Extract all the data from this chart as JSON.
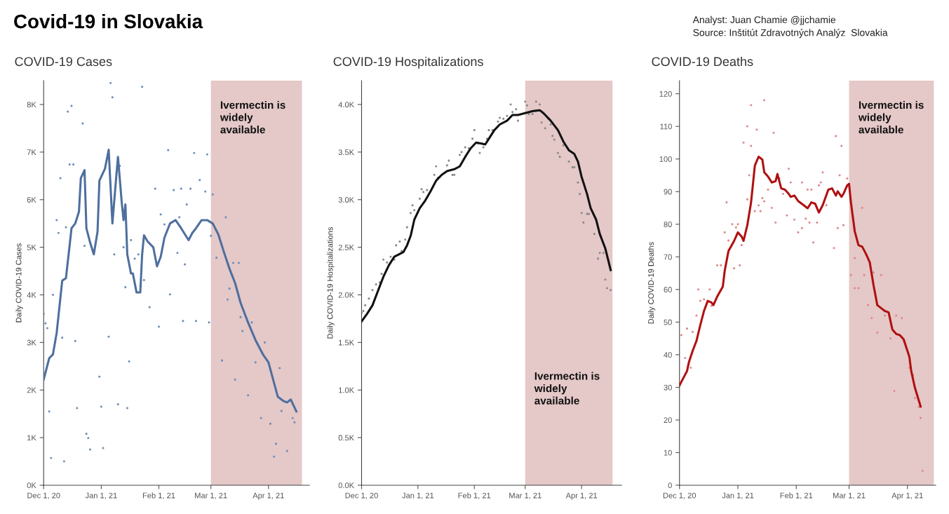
{
  "chart_data": [
    {
      "type": "other",
      "title": "Covid-19 in Slovakia",
      "annotations": [
        "Analyst: Juan Chamie @jjchamie",
        "Source: Inštitút Zdravotných Analýz  Slovakia"
      ]
    },
    {
      "type": "line",
      "title": "COVID-19 Cases",
      "ylabel": "Daily COVID-19 Cases",
      "grid": false,
      "legend": false,
      "xlim": [
        "2020-12-01",
        "2021-04-23"
      ],
      "xticks": [
        {
          "value": "2020-12-01",
          "label": "Dec 1, 20"
        },
        {
          "value": "2021-01-01",
          "label": "Jan 1, 21"
        },
        {
          "value": "2021-02-01",
          "label": "Feb 1, 21"
        },
        {
          "value": "2021-03-01",
          "label": "Mar 1, 21"
        },
        {
          "value": "2021-04-01",
          "label": "Apr 1, 21"
        }
      ],
      "ylim": [
        0,
        8500
      ],
      "yticks": [
        {
          "value": 0,
          "label": "0K"
        },
        {
          "value": 1000,
          "label": "1K"
        },
        {
          "value": 2000,
          "label": "2K"
        },
        {
          "value": 3000,
          "label": "3K"
        },
        {
          "value": 4000,
          "label": "4K"
        },
        {
          "value": 5000,
          "label": "5K"
        },
        {
          "value": 6000,
          "label": "6K"
        },
        {
          "value": 7000,
          "label": "7K"
        },
        {
          "value": 8000,
          "label": "8K"
        }
      ],
      "bands": [
        {
          "axis": "x",
          "from": "2021-03-01",
          "to": "2021-04-19",
          "color": "#e5c8c8",
          "label": "Ivermectin is\nwidely\navailable"
        }
      ],
      "series": [
        {
          "type": "scatter",
          "marker": "circle",
          "color": "#6f8fb5",
          "x": [
            "2020-12-01",
            "2020-12-02",
            "2020-12-03",
            "2020-12-04",
            "2020-12-05",
            "2020-12-06",
            "2020-12-08",
            "2020-12-09",
            "2020-12-10",
            "2020-12-11",
            "2020-12-12",
            "2020-12-13",
            "2020-12-14",
            "2020-12-15",
            "2020-12-16",
            "2020-12-17",
            "2020-12-18",
            "2020-12-19",
            "2020-12-22",
            "2020-12-23",
            "2020-12-24",
            "2020-12-25",
            "2020-12-26",
            "2020-12-31",
            "2021-01-01",
            "2021-01-02",
            "2021-01-05",
            "2021-01-06",
            "2021-01-07",
            "2021-01-08",
            "2021-01-10",
            "2021-01-11",
            "2021-01-13",
            "2021-01-14",
            "2021-01-15",
            "2021-01-16",
            "2021-01-17",
            "2021-01-19",
            "2021-01-21",
            "2021-01-23",
            "2021-01-24",
            "2021-01-27",
            "2021-01-30",
            "2021-02-01",
            "2021-02-02",
            "2021-02-04",
            "2021-02-06",
            "2021-02-07",
            "2021-02-09",
            "2021-02-11",
            "2021-02-12",
            "2021-02-13",
            "2021-02-14",
            "2021-02-15",
            "2021-02-16",
            "2021-02-18",
            "2021-02-20",
            "2021-02-21",
            "2021-02-23",
            "2021-02-26",
            "2021-02-27",
            "2021-02-28",
            "2021-03-01",
            "2021-03-02",
            "2021-03-04",
            "2021-03-07",
            "2021-03-09",
            "2021-03-10",
            "2021-03-11",
            "2021-03-13",
            "2021-03-14",
            "2021-03-16",
            "2021-03-17",
            "2021-03-18",
            "2021-03-21",
            "2021-03-23",
            "2021-03-25",
            "2021-03-28",
            "2021-03-30",
            "2021-04-02",
            "2021-04-04",
            "2021-04-05",
            "2021-04-07",
            "2021-04-08",
            "2021-04-11",
            "2021-04-14",
            "2021-04-15"
          ],
          "values": [
            3600,
            3400,
            3300,
            1550,
            570,
            4000,
            5570,
            5300,
            6450,
            3100,
            500,
            5420,
            7850,
            6740,
            7970,
            6740,
            3030,
            1620,
            7600,
            5030,
            1080,
            990,
            750,
            2280,
            1650,
            780,
            3120,
            8450,
            8150,
            4850,
            1700,
            6710,
            5000,
            4160,
            1620,
            2600,
            5150,
            4760,
            4850,
            8370,
            4310,
            3740,
            6230,
            3330,
            5690,
            5480,
            7040,
            4010,
            6200,
            4880,
            5630,
            6230,
            3450,
            4640,
            5900,
            6230,
            6980,
            3450,
            6410,
            6170,
            6950,
            3420,
            5240,
            6110,
            4780,
            2620,
            5630,
            3900,
            4130,
            4670,
            2220,
            4670,
            3530,
            3240,
            1890,
            3420,
            2580,
            1410,
            3000,
            1290,
            600,
            870,
            2460,
            1560,
            720,
            1410,
            1320
          ]
        },
        {
          "type": "line",
          "color": "#4e6f9e",
          "x": [
            "2020-12-01",
            "2020-12-04",
            "2020-12-06",
            "2020-12-08",
            "2020-12-11",
            "2020-12-13",
            "2020-12-16",
            "2020-12-18",
            "2020-12-20",
            "2020-12-21",
            "2020-12-23",
            "2020-12-24",
            "2020-12-26",
            "2020-12-28",
            "2020-12-30",
            "2020-12-31",
            "2021-01-03",
            "2021-01-05",
            "2021-01-07",
            "2021-01-09",
            "2021-01-10",
            "2021-01-12",
            "2021-01-13",
            "2021-01-14",
            "2021-01-15",
            "2021-01-17",
            "2021-01-18",
            "2021-01-20",
            "2021-01-22",
            "2021-01-23",
            "2021-01-24",
            "2021-01-26",
            "2021-01-29",
            "2021-01-31",
            "2021-02-02",
            "2021-02-04",
            "2021-02-07",
            "2021-02-10",
            "2021-02-13",
            "2021-02-17",
            "2021-02-19",
            "2021-02-21",
            "2021-02-24",
            "2021-02-27",
            "2021-03-02",
            "2021-03-05",
            "2021-03-08",
            "2021-03-11",
            "2021-03-14",
            "2021-03-17",
            "2021-03-21",
            "2021-03-25",
            "2021-03-29",
            "2021-04-01",
            "2021-04-04",
            "2021-04-06",
            "2021-04-09",
            "2021-04-11",
            "2021-04-13",
            "2021-04-16"
          ],
          "values": [
            2220,
            2670,
            2750,
            3200,
            4300,
            4350,
            5400,
            5500,
            5750,
            6450,
            6620,
            5400,
            5100,
            4850,
            5330,
            6400,
            6650,
            7050,
            5500,
            6450,
            6900,
            5950,
            5570,
            5900,
            4850,
            4450,
            4450,
            4050,
            4050,
            4850,
            5250,
            5120,
            5000,
            4600,
            4800,
            5200,
            5500,
            5570,
            5400,
            5150,
            5300,
            5400,
            5570,
            5570,
            5500,
            5270,
            4900,
            4550,
            4250,
            3830,
            3420,
            3050,
            2750,
            2580,
            2150,
            1860,
            1770,
            1740,
            1800,
            1550
          ]
        }
      ]
    },
    {
      "type": "line",
      "title": "COVID-19 Hospitalizations",
      "ylabel": "Daily COVID-19 Hospitalizations",
      "grid": false,
      "legend": false,
      "xlim": [
        "2020-12-01",
        "2021-04-23"
      ],
      "xticks": [
        {
          "value": "2020-12-01",
          "label": "Dec 1, 20"
        },
        {
          "value": "2021-01-01",
          "label": "Jan 1, 21"
        },
        {
          "value": "2021-02-01",
          "label": "Feb 1, 21"
        },
        {
          "value": "2021-03-01",
          "label": "Mar 1, 21"
        },
        {
          "value": "2021-04-01",
          "label": "Apr 1, 21"
        }
      ],
      "ylim": [
        0,
        4250
      ],
      "yticks": [
        {
          "value": 0,
          "label": "0.0K"
        },
        {
          "value": 500,
          "label": "0.5K"
        },
        {
          "value": 1000,
          "label": "1.0K"
        },
        {
          "value": 1500,
          "label": "1.5K"
        },
        {
          "value": 2000,
          "label": "2.0K"
        },
        {
          "value": 2500,
          "label": "2.5K"
        },
        {
          "value": 3000,
          "label": "3.0K"
        },
        {
          "value": 3500,
          "label": "3.5K"
        },
        {
          "value": 4000,
          "label": "4.0K"
        }
      ],
      "bands": [
        {
          "axis": "x",
          "from": "2021-03-01",
          "to": "2021-04-18",
          "color": "#e5c8c8",
          "label": "Ivermectin is\nwidely\navailable"
        }
      ],
      "series": [
        {
          "type": "scatter",
          "marker": "circle",
          "color": "#8a8a8a",
          "x": [
            "2020-12-01",
            "2020-12-02",
            "2020-12-03",
            "2020-12-05",
            "2020-12-07",
            "2020-12-09",
            "2020-12-11",
            "2020-12-12",
            "2020-12-13",
            "2020-12-15",
            "2020-12-17",
            "2020-12-19",
            "2020-12-20",
            "2020-12-22",
            "2020-12-23",
            "2020-12-25",
            "2020-12-26",
            "2020-12-28",
            "2020-12-29",
            "2020-12-30",
            "2021-01-02",
            "2021-01-03",
            "2021-01-04",
            "2021-01-06",
            "2021-01-10",
            "2021-01-11",
            "2021-01-12",
            "2021-01-17",
            "2021-01-18",
            "2021-01-20",
            "2021-01-21",
            "2021-01-24",
            "2021-01-25",
            "2021-01-27",
            "2021-01-29",
            "2021-01-31",
            "2021-02-01",
            "2021-02-03",
            "2021-02-04",
            "2021-02-06",
            "2021-02-08",
            "2021-02-09",
            "2021-02-11",
            "2021-02-14",
            "2021-02-15",
            "2021-02-17",
            "2021-02-19",
            "2021-02-21",
            "2021-02-22",
            "2021-02-24",
            "2021-02-25",
            "2021-03-01",
            "2021-03-02",
            "2021-03-03",
            "2021-03-05",
            "2021-03-07",
            "2021-03-09",
            "2021-03-10",
            "2021-03-12",
            "2021-03-15",
            "2021-03-16",
            "2021-03-17",
            "2021-03-19",
            "2021-03-20",
            "2021-03-22",
            "2021-03-24",
            "2021-03-25",
            "2021-03-27",
            "2021-03-28",
            "2021-03-30",
            "2021-03-31",
            "2021-04-01",
            "2021-04-02",
            "2021-04-04",
            "2021-04-05",
            "2021-04-08",
            "2021-04-10",
            "2021-04-11",
            "2021-04-13",
            "2021-04-14",
            "2021-04-15",
            "2021-04-17"
          ],
          "values": [
            1810,
            1830,
            1890,
            1960,
            2050,
            2110,
            2130,
            2220,
            2370,
            2340,
            2400,
            2370,
            2520,
            2560,
            2460,
            2580,
            2710,
            2860,
            2940,
            2890,
            3010,
            3110,
            3080,
            3100,
            3260,
            3350,
            3230,
            3360,
            3410,
            3260,
            3260,
            3470,
            3500,
            3550,
            3540,
            3640,
            3730,
            3590,
            3490,
            3550,
            3640,
            3730,
            3730,
            3820,
            3860,
            3850,
            3880,
            4000,
            3920,
            3950,
            3830,
            4030,
            3990,
            3900,
            3900,
            4030,
            4000,
            3810,
            3750,
            3790,
            3670,
            3630,
            3490,
            3450,
            3570,
            3550,
            3400,
            3340,
            3340,
            3180,
            3060,
            2860,
            2760,
            2850,
            2850,
            2640,
            2380,
            2440,
            2440,
            2160,
            2070,
            2050
          ]
        },
        {
          "type": "line",
          "color": "#111111",
          "x": [
            "2020-12-01",
            "2020-12-04",
            "2020-12-07",
            "2020-12-10",
            "2020-12-13",
            "2020-12-16",
            "2020-12-19",
            "2020-12-22",
            "2020-12-24",
            "2020-12-26",
            "2020-12-28",
            "2020-12-30",
            "2021-01-02",
            "2021-01-05",
            "2021-01-08",
            "2021-01-11",
            "2021-01-14",
            "2021-01-17",
            "2021-01-21",
            "2021-01-24",
            "2021-01-27",
            "2021-01-30",
            "2021-02-02",
            "2021-02-05",
            "2021-02-07",
            "2021-02-09",
            "2021-02-12",
            "2021-02-15",
            "2021-02-19",
            "2021-02-22",
            "2021-02-25",
            "2021-03-01",
            "2021-03-05",
            "2021-03-09",
            "2021-03-11",
            "2021-03-15",
            "2021-03-19",
            "2021-03-22",
            "2021-03-25",
            "2021-03-28",
            "2021-03-30",
            "2021-04-01",
            "2021-04-04",
            "2021-04-06",
            "2021-04-09",
            "2021-04-11",
            "2021-04-14",
            "2021-04-17"
          ],
          "values": [
            1720,
            1800,
            1890,
            2040,
            2190,
            2310,
            2400,
            2430,
            2450,
            2520,
            2620,
            2790,
            2910,
            2990,
            3090,
            3200,
            3260,
            3300,
            3320,
            3350,
            3450,
            3540,
            3600,
            3590,
            3580,
            3640,
            3730,
            3790,
            3830,
            3890,
            3890,
            3910,
            3930,
            3940,
            3910,
            3830,
            3730,
            3610,
            3520,
            3480,
            3400,
            3240,
            3060,
            2910,
            2790,
            2640,
            2490,
            2260
          ]
        }
      ]
    },
    {
      "type": "line",
      "title": "COVID-19 Deaths",
      "ylabel": "Daily COVID-19 Deaths",
      "grid": false,
      "legend": false,
      "xlim": [
        "2020-12-01",
        "2021-04-16"
      ],
      "xticks": [
        {
          "value": "2020-12-01",
          "label": "Dec 1, 20"
        },
        {
          "value": "2021-01-01",
          "label": "Jan 1, 21"
        },
        {
          "value": "2021-02-01",
          "label": "Feb 1, 21"
        },
        {
          "value": "2021-03-01",
          "label": "Mar 1, 21"
        },
        {
          "value": "2021-04-01",
          "label": "Apr 1, 21"
        }
      ],
      "ylim": [
        0,
        124
      ],
      "yticks": [
        0,
        10,
        20,
        30,
        40,
        50,
        60,
        70,
        80,
        90,
        100,
        110,
        120
      ],
      "bands": [
        {
          "axis": "x",
          "from": "2021-03-01",
          "to": "2021-04-15",
          "color": "#e5c8c8",
          "label": "Ivermectin is\nwidely\navailable"
        }
      ],
      "series": [
        {
          "type": "scatter",
          "marker": "circle",
          "color": "#e08a8a",
          "x": [
            "2020-12-02",
            "2020-12-04",
            "2020-12-05",
            "2020-12-07",
            "2020-12-08",
            "2020-12-10",
            "2020-12-11",
            "2020-12-12",
            "2020-12-14",
            "2020-12-17",
            "2020-12-18",
            "2020-12-21",
            "2020-12-23",
            "2020-12-25",
            "2020-12-26",
            "2020-12-27",
            "2020-12-29",
            "2020-12-30",
            "2020-12-31",
            "2021-01-01",
            "2021-01-02",
            "2021-01-03",
            "2021-01-04",
            "2021-01-06",
            "2021-01-06",
            "2021-01-07",
            "2021-01-08",
            "2021-01-08",
            "2021-01-10",
            "2021-01-11",
            "2021-01-12",
            "2021-01-13",
            "2021-01-14",
            "2021-01-15",
            "2021-01-15",
            "2021-01-17",
            "2021-01-19",
            "2021-01-20",
            "2021-01-21",
            "2021-01-23",
            "2021-01-25",
            "2021-01-27",
            "2021-01-28",
            "2021-01-29",
            "2021-01-31",
            "2021-02-02",
            "2021-02-04",
            "2021-02-04",
            "2021-02-06",
            "2021-02-07",
            "2021-02-08",
            "2021-02-09",
            "2021-02-10",
            "2021-02-12",
            "2021-02-13",
            "2021-02-14",
            "2021-02-15",
            "2021-02-17",
            "2021-02-21",
            "2021-02-22",
            "2021-02-23",
            "2021-02-24",
            "2021-02-25",
            "2021-02-26",
            "2021-02-28",
            "2021-03-02",
            "2021-03-04",
            "2021-03-04",
            "2021-03-06",
            "2021-03-08",
            "2021-03-09",
            "2021-03-11",
            "2021-03-13",
            "2021-03-14",
            "2021-03-16",
            "2021-03-18",
            "2021-03-20",
            "2021-03-23",
            "2021-03-25",
            "2021-03-26",
            "2021-03-29",
            "2021-03-30",
            "2021-04-02",
            "2021-04-04",
            "2021-04-05",
            "2021-04-07",
            "2021-04-08",
            "2021-04-09"
          ],
          "values": [
            46,
            39,
            48,
            36,
            47,
            52,
            60,
            56.5,
            57,
            60,
            55,
            67.4,
            67.4,
            77.5,
            86.7,
            75,
            80,
            66.5,
            79,
            80,
            67.4,
            73.6,
            105,
            87.6,
            110,
            95,
            116.5,
            104,
            84,
            109,
            85.8,
            84,
            88,
            118,
            87,
            90.6,
            85,
            108,
            80.5,
            94,
            89.3,
            82.7,
            97,
            92.8,
            81.4,
            77.5,
            78.8,
            92.8,
            81.7,
            90.6,
            80.5,
            90.6,
            74.4,
            80.5,
            91.9,
            92.8,
            95.9,
            85.8,
            72.7,
            107,
            78.8,
            95,
            104,
            79.7,
            94,
            64.4,
            60.4,
            69.6,
            60.4,
            85,
            64.4,
            55.2,
            51.2,
            65.2,
            46.8,
            64.4,
            52,
            45,
            28.9,
            52,
            51.2,
            44.2,
            36,
            33.7,
            26.7,
            24,
            20.6,
            4.4
          ]
        },
        {
          "type": "line",
          "color": "#b01010",
          "x": [
            "2020-12-01",
            "2020-12-03",
            "2020-12-05",
            "2020-12-06",
            "2020-12-08",
            "2020-12-10",
            "2020-12-12",
            "2020-12-14",
            "2020-12-16",
            "2020-12-18",
            "2020-12-19",
            "2020-12-21",
            "2020-12-24",
            "2020-12-25",
            "2020-12-27",
            "2020-12-30",
            "2021-01-01",
            "2021-01-03",
            "2021-01-04",
            "2021-01-06",
            "2021-01-08",
            "2021-01-10",
            "2021-01-12",
            "2021-01-14",
            "2021-01-15",
            "2021-01-17",
            "2021-01-19",
            "2021-01-21",
            "2021-01-22",
            "2021-01-24",
            "2021-01-26",
            "2021-01-28",
            "2021-01-29",
            "2021-01-31",
            "2021-02-02",
            "2021-02-05",
            "2021-02-07",
            "2021-02-09",
            "2021-02-11",
            "2021-02-13",
            "2021-02-15",
            "2021-02-18",
            "2021-02-20",
            "2021-02-22",
            "2021-02-23",
            "2021-02-25",
            "2021-02-26",
            "2021-02-28",
            "2021-03-01",
            "2021-03-02",
            "2021-03-04",
            "2021-03-06",
            "2021-03-08",
            "2021-03-10",
            "2021-03-12",
            "2021-03-14",
            "2021-03-16",
            "2021-03-18",
            "2021-03-20",
            "2021-03-22",
            "2021-03-24",
            "2021-03-26",
            "2021-03-28",
            "2021-03-30",
            "2021-04-02",
            "2021-04-03",
            "2021-04-05",
            "2021-04-08"
          ],
          "values": [
            30.6,
            32.8,
            35,
            37.7,
            41.2,
            44.2,
            49,
            53.4,
            56.5,
            56,
            55.2,
            57.8,
            60.9,
            65.7,
            71.8,
            74.9,
            77.5,
            76.2,
            74.9,
            79.7,
            86.7,
            98,
            100.7,
            99.8,
            95.9,
            94.6,
            92.8,
            93.2,
            95.4,
            91,
            90.6,
            89.3,
            88.4,
            88.8,
            87.1,
            85.8,
            84.9,
            86.7,
            86.3,
            83.6,
            85.8,
            90.6,
            91,
            88.8,
            90.1,
            88.4,
            89.3,
            91.9,
            92.4,
            86.7,
            77.9,
            73.6,
            73.1,
            70.9,
            68.3,
            61.3,
            55.2,
            54.3,
            53.4,
            53,
            47.7,
            46.4,
            46,
            44.7,
            39.4,
            35,
            29.8,
            24.1
          ]
        }
      ]
    }
  ]
}
